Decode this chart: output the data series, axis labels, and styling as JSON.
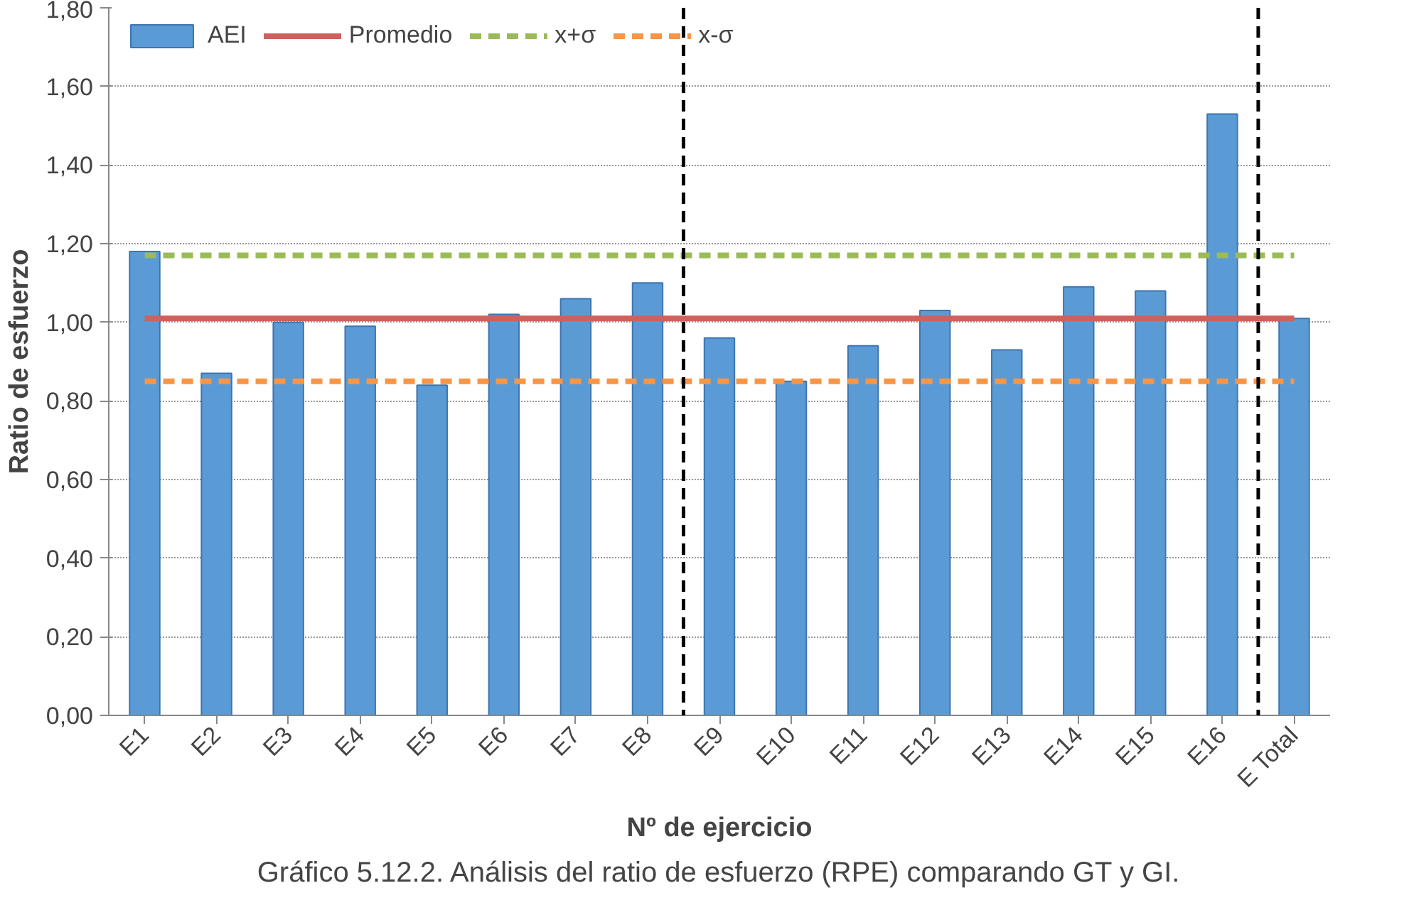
{
  "chart_data": {
    "type": "bar",
    "xlabel": "Nº de ejercicio",
    "ylabel": "Ratio de esfuerzo",
    "categories": [
      "E1",
      "E2",
      "E3",
      "E4",
      "E5",
      "E6",
      "E7",
      "E8",
      "E9",
      "E10",
      "E11",
      "E12",
      "E13",
      "E14",
      "E15",
      "E16",
      "E Total"
    ],
    "series": [
      {
        "name": "AEI",
        "color": "#5b9bd5",
        "values": [
          1.18,
          0.87,
          1.0,
          0.99,
          0.84,
          1.02,
          1.06,
          1.1,
          0.96,
          0.85,
          0.94,
          1.03,
          0.93,
          1.09,
          1.08,
          1.53,
          1.01
        ]
      },
      {
        "name": "Promedio",
        "type": "line",
        "color": "#d0605e",
        "values": [
          1.01,
          1.01,
          1.01,
          1.01,
          1.01,
          1.01,
          1.01,
          1.01,
          1.01,
          1.01,
          1.01,
          1.01,
          1.01,
          1.01,
          1.01,
          1.01,
          1.01
        ]
      },
      {
        "name": "x+σ",
        "type": "line",
        "line_style": "dashed",
        "color": "#9bbb59",
        "values": [
          1.17,
          1.17,
          1.17,
          1.17,
          1.17,
          1.17,
          1.17,
          1.17,
          1.17,
          1.17,
          1.17,
          1.17,
          1.17,
          1.17,
          1.17,
          1.17,
          1.17
        ]
      },
      {
        "name": "x-σ",
        "type": "line",
        "line_style": "dashed",
        "color": "#f79646",
        "values": [
          0.85,
          0.85,
          0.85,
          0.85,
          0.85,
          0.85,
          0.85,
          0.85,
          0.85,
          0.85,
          0.85,
          0.85,
          0.85,
          0.85,
          0.85,
          0.85,
          0.85
        ]
      }
    ],
    "ylim": [
      0,
      1.8
    ],
    "yticks": [
      {
        "value": 0,
        "label": "0,00"
      },
      {
        "value": 0.2,
        "label": "0,20"
      },
      {
        "value": 0.4,
        "label": "0,40"
      },
      {
        "value": 0.6,
        "label": "0,60"
      },
      {
        "value": 0.8,
        "label": "0,80"
      },
      {
        "value": 1.0,
        "label": "1,00"
      },
      {
        "value": 1.2,
        "label": "1,20"
      },
      {
        "value": 1.4,
        "label": "1,40"
      },
      {
        "value": 1.6,
        "label": "1,60"
      },
      {
        "value": 1.8,
        "label": "1,80"
      }
    ],
    "grid": "y",
    "legend": "top left",
    "annotations": [
      "Gráfico 5.12.2. Análisis del ratio de esfuerzo (RPE) comparando GT y GI."
    ]
  }
}
